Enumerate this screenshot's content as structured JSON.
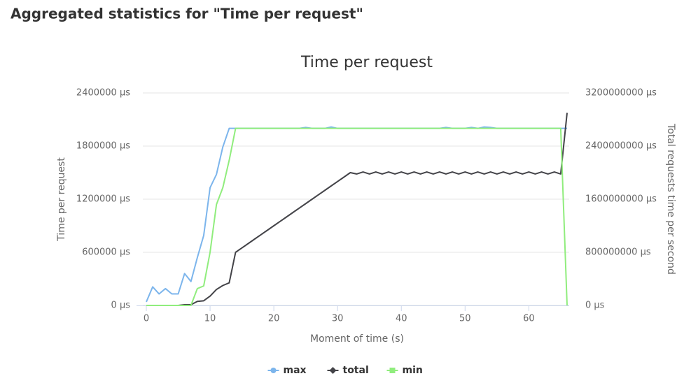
{
  "heading": "Aggregated statistics for \"Time per request\"",
  "chart_data": {
    "type": "line",
    "title": "Time per request",
    "xlabel": "Moment of time (s)",
    "ylabel": "Time per request",
    "y2label": "Total requests time per second",
    "x": [
      0,
      1,
      2,
      3,
      4,
      5,
      6,
      7,
      8,
      9,
      10,
      11,
      12,
      13,
      14,
      15,
      16,
      17,
      18,
      19,
      20,
      21,
      22,
      23,
      24,
      25,
      26,
      27,
      28,
      29,
      30,
      31,
      32,
      33,
      34,
      35,
      36,
      37,
      38,
      39,
      40,
      41,
      42,
      43,
      44,
      45,
      46,
      47,
      48,
      49,
      50,
      51,
      52,
      53,
      54,
      55,
      56,
      57,
      58,
      59,
      60,
      61,
      62,
      63,
      64,
      65,
      66
    ],
    "xlim": [
      0,
      66
    ],
    "xticks": [
      0,
      10,
      20,
      30,
      40,
      50,
      60
    ],
    "ylim": [
      0,
      2400000
    ],
    "yticks": [
      {
        "value": 0,
        "label": "0 µs"
      },
      {
        "value": 600000,
        "label": "600000 µs"
      },
      {
        "value": 1200000,
        "label": "1200000 µs"
      },
      {
        "value": 1800000,
        "label": "1800000 µs"
      },
      {
        "value": 2400000,
        "label": "2400000 µs"
      }
    ],
    "y2lim": [
      0,
      3200000000
    ],
    "y2ticks": [
      {
        "value": 0,
        "label": "0 µs"
      },
      {
        "value": 800000000,
        "label": "800000000 µs"
      },
      {
        "value": 1600000000,
        "label": "1600000000 µs"
      },
      {
        "value": 2400000000,
        "label": "2400000000 µs"
      },
      {
        "value": 3200000000,
        "label": "3200000000 µs"
      }
    ],
    "grid": true,
    "legend": "bottom",
    "series": [
      {
        "name": "max",
        "color": "#7cb5ec",
        "marker": "circle",
        "values": [
          40000,
          210000,
          130000,
          190000,
          130000,
          130000,
          360000,
          270000,
          540000,
          790000,
          1330000,
          1480000,
          1790000,
          2000000,
          2000000,
          2000000,
          2000000,
          2000000,
          2000000,
          2000000,
          2000000,
          2000000,
          2000000,
          2000000,
          2000000,
          2010000,
          2000000,
          2000000,
          2000000,
          2015000,
          2000000,
          2000000,
          2000000,
          2000000,
          2000000,
          2000000,
          2000000,
          2000000,
          2000000,
          2000000,
          2000000,
          2000000,
          2000000,
          2000000,
          2000000,
          2000000,
          2000000,
          2010000,
          2000000,
          2000000,
          2000000,
          2010000,
          2000000,
          2015000,
          2010000,
          2000000,
          2000000,
          2000000,
          2000000,
          2000000,
          2000000,
          2000000,
          2000000,
          2000000,
          2000000,
          2000000,
          2000000
        ]
      },
      {
        "name": "total",
        "color": "#434348",
        "marker": "diamond",
        "axis": "y2",
        "values": [
          0,
          0,
          0,
          0,
          0,
          0,
          10000000,
          10000000,
          60000000,
          70000000,
          140000000,
          240000000,
          300000000,
          340000000,
          800000000,
          867000000,
          933000000,
          1000000000,
          1067000000,
          1133000000,
          1200000000,
          1267000000,
          1333000000,
          1400000000,
          1467000000,
          1533000000,
          1600000000,
          1667000000,
          1733000000,
          1800000000,
          1867000000,
          1933000000,
          2000000000,
          1980000000,
          2010000000,
          1980000000,
          2010000000,
          1980000000,
          2010000000,
          1980000000,
          2010000000,
          1980000000,
          2010000000,
          1980000000,
          2010000000,
          1980000000,
          2010000000,
          1980000000,
          2010000000,
          1980000000,
          2010000000,
          1980000000,
          2010000000,
          1980000000,
          2010000000,
          1980000000,
          2010000000,
          1980000000,
          2010000000,
          1980000000,
          2010000000,
          1980000000,
          2010000000,
          1980000000,
          2010000000,
          1980000000,
          2900000000
        ]
      },
      {
        "name": "min",
        "color": "#90ed7d",
        "marker": "square",
        "values": [
          0,
          0,
          0,
          0,
          0,
          0,
          0,
          0,
          190000,
          220000,
          600000,
          1140000,
          1330000,
          1640000,
          2000000,
          2000000,
          2000000,
          2000000,
          2000000,
          2000000,
          2000000,
          2000000,
          2000000,
          2000000,
          2000000,
          2000000,
          2000000,
          2000000,
          2000000,
          2000000,
          2000000,
          2000000,
          2000000,
          2000000,
          2000000,
          2000000,
          2000000,
          2000000,
          2000000,
          2000000,
          2000000,
          2000000,
          2000000,
          2000000,
          2000000,
          2000000,
          2000000,
          2000000,
          2000000,
          2000000,
          2000000,
          2000000,
          2000000,
          2000000,
          2000000,
          2000000,
          2000000,
          2000000,
          2000000,
          2000000,
          2000000,
          2000000,
          2000000,
          2000000,
          2000000,
          2000000,
          0
        ]
      }
    ]
  }
}
